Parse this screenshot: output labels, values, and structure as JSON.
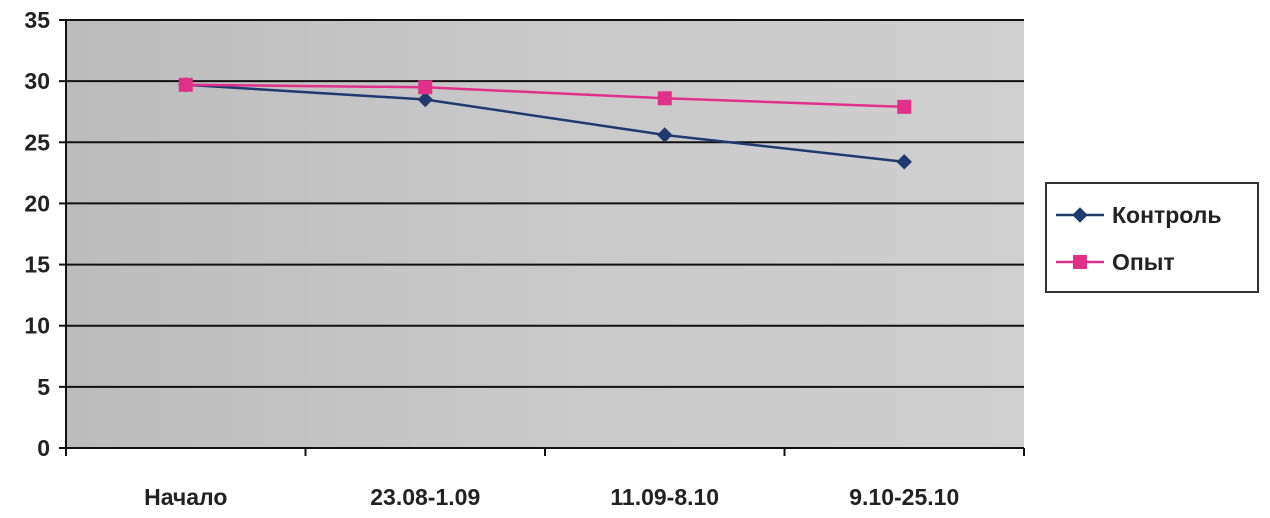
{
  "chart_data": {
    "type": "line",
    "title": "",
    "xlabel": "",
    "ylabel": "",
    "categories": [
      "Начало",
      "23.08-1.09",
      "11.09-8.10",
      "9.10-25.10"
    ],
    "ylim": [
      0,
      35
    ],
    "yticks": [
      0,
      5,
      10,
      15,
      20,
      25,
      30,
      35
    ],
    "grid": true,
    "legend_position": "right",
    "series": [
      {
        "name": "Контроль",
        "values": [
          29.7,
          28.5,
          25.6,
          23.4
        ],
        "color": "#1f3a6e",
        "marker": "diamond"
      },
      {
        "name": "Опыт",
        "values": [
          29.7,
          29.5,
          28.6,
          27.9
        ],
        "color": "#e0308a",
        "marker": "square"
      }
    ]
  }
}
